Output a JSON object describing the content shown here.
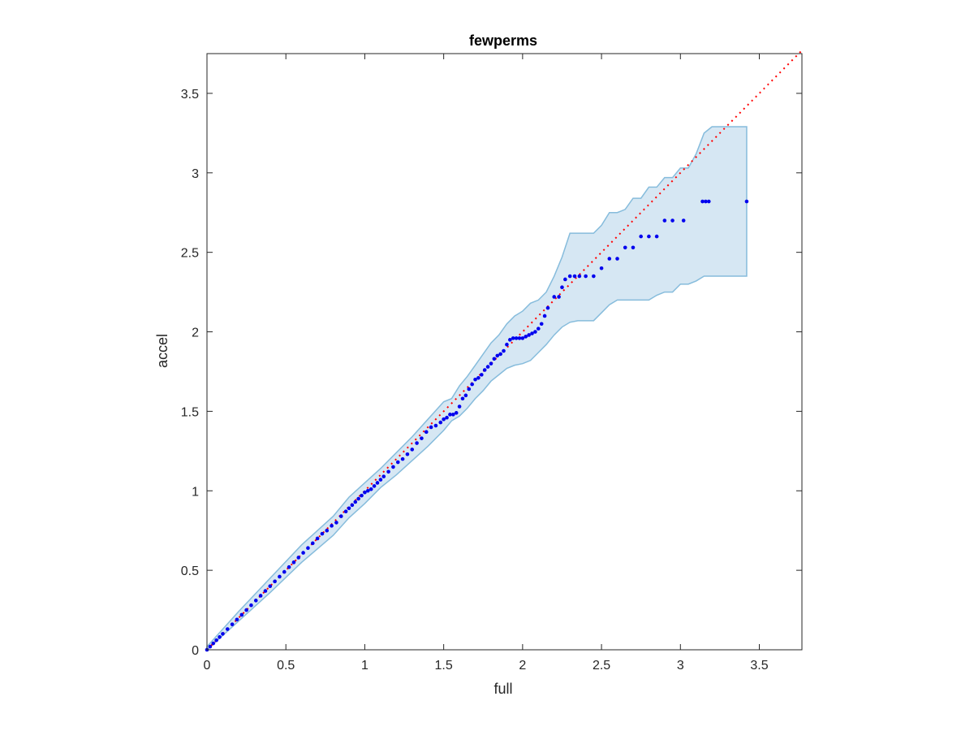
{
  "chart_data": {
    "type": "scatter",
    "title": "fewperms",
    "xlabel": "full",
    "ylabel": "accel",
    "xlim": [
      0,
      3.77
    ],
    "ylim": [
      0,
      3.75
    ],
    "xticks": [
      0,
      0.5,
      1,
      1.5,
      2,
      2.5,
      3,
      3.5
    ],
    "yticks": [
      0,
      0.5,
      1,
      1.5,
      2,
      2.5,
      3,
      3.5
    ],
    "xtick_labels": [
      "0",
      "0.5",
      "1",
      "1.5",
      "2",
      "2.5",
      "3",
      "3.5"
    ],
    "ytick_labels": [
      "0",
      "0.5",
      "1",
      "1.5",
      "2",
      "2.5",
      "3",
      "3.5"
    ],
    "grid": false,
    "colors": {
      "points": "#0000ee",
      "reference": "#ff0000",
      "band_fill": "#d6e7f3",
      "band_edge": "#86bcdc",
      "axes": "#262626"
    },
    "reference_line": {
      "style": "dotted",
      "x": [
        0,
        3.77
      ],
      "y": [
        0,
        3.77
      ]
    },
    "band": {
      "x": [
        0,
        0.2,
        0.4,
        0.6,
        0.8,
        0.9,
        1.0,
        1.1,
        1.2,
        1.3,
        1.4,
        1.5,
        1.55,
        1.6,
        1.65,
        1.7,
        1.75,
        1.8,
        1.85,
        1.9,
        1.95,
        2.0,
        2.05,
        2.1,
        2.15,
        2.2,
        2.25,
        2.3,
        2.35,
        2.4,
        2.45,
        2.5,
        2.55,
        2.6,
        2.65,
        2.7,
        2.75,
        2.8,
        2.85,
        2.9,
        2.95,
        3.0,
        3.05,
        3.1,
        3.15,
        3.2,
        3.25,
        3.3,
        3.35,
        3.42
      ],
      "upper": [
        0.02,
        0.24,
        0.45,
        0.66,
        0.84,
        0.96,
        1.05,
        1.14,
        1.24,
        1.34,
        1.45,
        1.56,
        1.58,
        1.66,
        1.72,
        1.79,
        1.86,
        1.93,
        1.98,
        2.05,
        2.1,
        2.13,
        2.18,
        2.2,
        2.25,
        2.35,
        2.47,
        2.62,
        2.62,
        2.62,
        2.62,
        2.67,
        2.75,
        2.75,
        2.77,
        2.84,
        2.84,
        2.91,
        2.91,
        2.97,
        2.97,
        3.03,
        3.03,
        3.12,
        3.25,
        3.29,
        3.29,
        3.29,
        3.29,
        3.29
      ],
      "lower": [
        0.0,
        0.18,
        0.36,
        0.55,
        0.72,
        0.83,
        0.92,
        1.02,
        1.1,
        1.19,
        1.28,
        1.38,
        1.44,
        1.47,
        1.52,
        1.58,
        1.63,
        1.69,
        1.73,
        1.77,
        1.79,
        1.8,
        1.82,
        1.87,
        1.92,
        1.98,
        2.03,
        2.06,
        2.07,
        2.07,
        2.07,
        2.12,
        2.17,
        2.2,
        2.2,
        2.2,
        2.2,
        2.2,
        2.23,
        2.25,
        2.25,
        2.3,
        2.3,
        2.32,
        2.35,
        2.35,
        2.35,
        2.35,
        2.35,
        2.35
      ]
    },
    "series": [
      {
        "x": [
          0.0,
          0.02,
          0.04,
          0.06,
          0.08,
          0.1,
          0.13,
          0.16,
          0.19,
          0.22,
          0.25,
          0.28,
          0.31,
          0.34,
          0.37,
          0.4,
          0.43,
          0.46,
          0.49,
          0.52,
          0.55,
          0.58,
          0.61,
          0.64,
          0.67,
          0.7,
          0.73,
          0.76,
          0.79,
          0.82,
          0.85,
          0.88,
          0.9,
          0.92,
          0.94,
          0.96,
          0.98,
          1.0,
          1.02,
          1.04,
          1.06,
          1.08,
          1.1,
          1.12,
          1.15,
          1.18,
          1.21,
          1.24,
          1.27,
          1.3,
          1.33,
          1.36,
          1.39,
          1.42,
          1.45,
          1.48,
          1.5,
          1.52,
          1.54,
          1.56,
          1.58,
          1.6,
          1.62,
          1.64,
          1.66,
          1.68,
          1.7,
          1.72,
          1.74,
          1.76,
          1.78,
          1.8,
          1.82,
          1.84,
          1.86,
          1.88,
          1.9,
          1.92,
          1.94,
          1.96,
          1.98,
          2.0,
          2.02,
          2.04,
          2.06,
          2.08,
          2.1,
          2.12,
          2.14,
          2.16,
          2.2,
          2.23,
          2.25,
          2.27,
          2.3,
          2.33,
          2.36,
          2.4,
          2.45,
          2.5,
          2.55,
          2.6,
          2.65,
          2.7,
          2.75,
          2.8,
          2.85,
          2.9,
          2.95,
          3.02,
          3.14,
          3.16,
          3.18,
          3.42
        ],
        "y": [
          0.0,
          0.02,
          0.04,
          0.06,
          0.08,
          0.1,
          0.13,
          0.16,
          0.19,
          0.22,
          0.25,
          0.28,
          0.31,
          0.34,
          0.37,
          0.4,
          0.43,
          0.46,
          0.49,
          0.52,
          0.55,
          0.58,
          0.61,
          0.64,
          0.67,
          0.7,
          0.73,
          0.75,
          0.78,
          0.8,
          0.84,
          0.87,
          0.89,
          0.91,
          0.93,
          0.95,
          0.97,
          0.99,
          1.0,
          1.01,
          1.03,
          1.05,
          1.07,
          1.09,
          1.12,
          1.15,
          1.18,
          1.2,
          1.23,
          1.26,
          1.3,
          1.33,
          1.37,
          1.4,
          1.41,
          1.43,
          1.45,
          1.46,
          1.48,
          1.48,
          1.49,
          1.53,
          1.58,
          1.6,
          1.64,
          1.67,
          1.7,
          1.71,
          1.73,
          1.76,
          1.78,
          1.8,
          1.83,
          1.85,
          1.86,
          1.88,
          1.92,
          1.95,
          1.96,
          1.96,
          1.96,
          1.96,
          1.97,
          1.98,
          1.99,
          2.0,
          2.02,
          2.05,
          2.1,
          2.15,
          2.22,
          2.22,
          2.28,
          2.33,
          2.35,
          2.35,
          2.35,
          2.35,
          2.35,
          2.4,
          2.46,
          2.46,
          2.53,
          2.53,
          2.6,
          2.6,
          2.6,
          2.7,
          2.7,
          2.7,
          2.82,
          2.82,
          2.82,
          2.82
        ]
      }
    ]
  }
}
